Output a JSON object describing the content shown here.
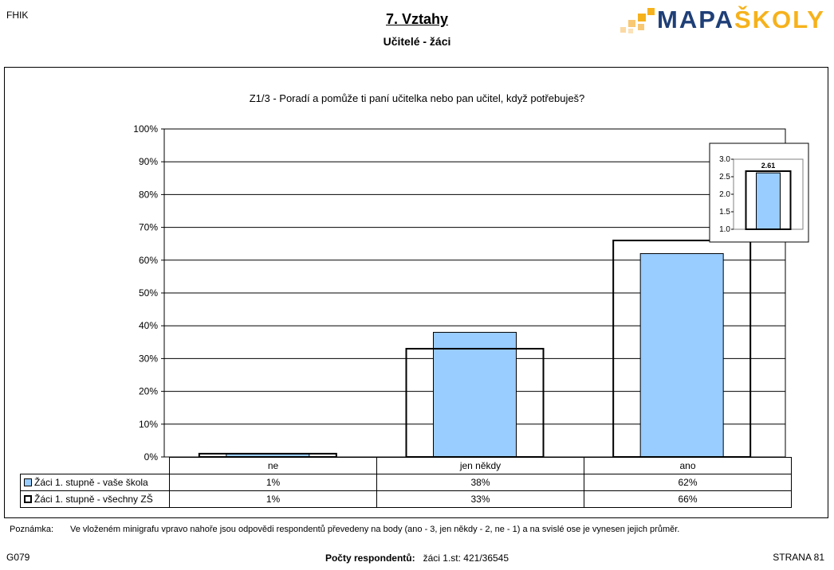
{
  "header": {
    "org": "FHIK",
    "title": "7. Vztahy",
    "subtitle": "Učitelé - žáci",
    "logo": {
      "part1": "MAPA",
      "part2": "ŠKOLY",
      "color1": "#1f3f77",
      "color2": "#f6b21c"
    }
  },
  "question": "Z1/3 - Poradí a pomůže ti paní učitelka nebo pan učitel, když potřebuješ?",
  "chart_data": [
    {
      "type": "bar",
      "categories": [
        "ne",
        "jen někdy",
        "ano"
      ],
      "series": [
        {
          "name": "Žáci 1. stupně - vaše škola",
          "values": [
            1,
            38,
            62
          ],
          "labels": [
            "1%",
            "38%",
            "62%"
          ],
          "color": "#99ccff"
        },
        {
          "name": "Žáci 1. stupně - všechny ZŠ",
          "values": [
            1,
            33,
            66
          ],
          "labels": [
            "1%",
            "33%",
            "66%"
          ],
          "color": "#ffffff"
        }
      ],
      "ylim": [
        0,
        100
      ],
      "yticks": [
        "0%",
        "10%",
        "20%",
        "30%",
        "40%",
        "50%",
        "60%",
        "70%",
        "80%",
        "90%",
        "100%"
      ],
      "grid": true,
      "legend": "data table below chart"
    },
    {
      "type": "bar",
      "values": [
        2.61,
        2.66
      ],
      "data_label": "2.61",
      "ylim": [
        1.0,
        3.0
      ],
      "yticks": [
        "1.0",
        "1.5",
        "2.0",
        "2.5",
        "3.0"
      ],
      "legend": "none"
    }
  ],
  "footer": {
    "note_label": "Poznámka:",
    "note": "Ve vloženém minigrafu vpravo nahoře jsou odpovědi respondentů převedeny na body (ano - 3, jen někdy - 2, ne - 1) a na svislé ose je vynesen jejich průměr.",
    "code": "G079",
    "respondents_label": "Počty respondentů:",
    "respondents_value": "žáci 1.st: 421/36545",
    "page": "STRANA 81"
  }
}
